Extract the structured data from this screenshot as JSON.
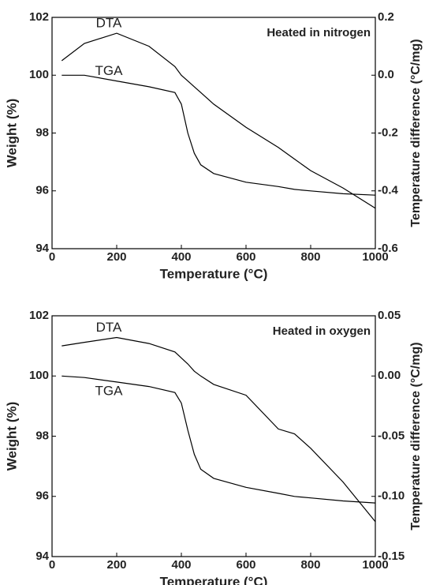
{
  "chart_data": [
    {
      "type": "line",
      "annotation": "Heated in nitrogen",
      "xlabel": "Temperature (°C)",
      "ylabel": "Weight (%)",
      "y2label": "Temperature difference (°C/mg)",
      "x": [
        30,
        100,
        200,
        300,
        380,
        400,
        420,
        440,
        460,
        500,
        600,
        700,
        750,
        800,
        900,
        1000
      ],
      "series": [
        {
          "name": "TGA",
          "color": "#000000",
          "values": [
            100.0,
            100.0,
            99.8,
            99.6,
            99.4,
            99.0,
            98.0,
            97.3,
            96.9,
            96.6,
            96.3,
            96.15,
            96.05,
            96.0,
            95.9,
            95.85
          ]
        },
        {
          "name": "DTA",
          "color": "#000000",
          "axis": "y2",
          "values": [
            0.05,
            0.11,
            0.145,
            0.1,
            0.03,
            0.0,
            -0.02,
            -0.04,
            -0.06,
            -0.1,
            -0.18,
            -0.25,
            -0.29,
            -0.33,
            -0.39,
            -0.46
          ]
        }
      ],
      "xlim": [
        0,
        1000
      ],
      "xticks": [
        0,
        200,
        400,
        600,
        800,
        1000
      ],
      "ylim": [
        94,
        102
      ],
      "yticks": [
        94,
        96,
        98,
        100,
        102
      ],
      "y2lim": [
        -0.6,
        0.2
      ],
      "y2ticks": [
        -0.6,
        -0.4,
        -0.2,
        {
          "value": 0,
          "label": "0.0"
        },
        0.2
      ]
    },
    {
      "type": "line",
      "annotation": "Heated in oxygen",
      "xlabel": "Temperature (°C)",
      "ylabel": "Weight (%)",
      "y2label": "Temperature difference (°C/mg)",
      "x": [
        30,
        100,
        200,
        300,
        380,
        400,
        420,
        440,
        460,
        500,
        600,
        700,
        750,
        800,
        900,
        1000
      ],
      "series": [
        {
          "name": "TGA",
          "color": "#000000",
          "values": [
            100.0,
            99.95,
            99.8,
            99.65,
            99.45,
            99.1,
            98.2,
            97.4,
            96.9,
            96.6,
            96.3,
            96.1,
            96.0,
            95.95,
            95.85,
            95.78
          ]
        },
        {
          "name": "DTA",
          "color": "#000000",
          "axis": "y2",
          "values": [
            0.025,
            0.028,
            0.032,
            0.027,
            0.02,
            0.015,
            0.01,
            0.004,
            0.0,
            -0.007,
            -0.016,
            -0.044,
            -0.048,
            -0.06,
            -0.088,
            -0.121
          ]
        }
      ],
      "xlim": [
        0,
        1000
      ],
      "xticks": [
        0,
        200,
        400,
        600,
        800,
        1000
      ],
      "ylim": [
        94,
        102
      ],
      "yticks": [
        94,
        96,
        98,
        100,
        102
      ],
      "y2lim": [
        -0.15,
        0.05
      ],
      "y2ticks": [
        -0.15,
        {
          "value": -0.1,
          "label": "-0.10"
        },
        -0.05,
        {
          "value": 0,
          "label": "0.00"
        },
        0.05
      ]
    }
  ]
}
